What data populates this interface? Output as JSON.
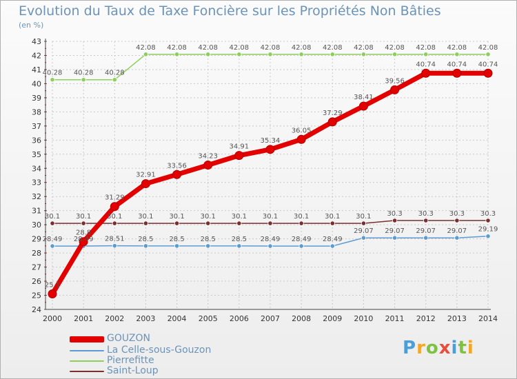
{
  "title": "Evolution du Taux de Taxe Foncière sur les Propriétés Non Bâties",
  "unit": "(en %)",
  "logo": {
    "text": "Proxiti",
    "letter_colors": [
      "#4a9fd8",
      "#f5a623",
      "#7fc241",
      "#e84e3b",
      "#4a9fd8",
      "#7fc241",
      "#f5a623"
    ]
  },
  "chart_data": {
    "type": "line",
    "x": [
      "2000",
      "2001",
      "2002",
      "2003",
      "2004",
      "2005",
      "2006",
      "2007",
      "2008",
      "2009",
      "2010",
      "2011",
      "2012",
      "2013",
      "2014"
    ],
    "ylim": [
      24,
      43
    ],
    "yticks": [
      24,
      25,
      26,
      27,
      28,
      29,
      30,
      31,
      32,
      33,
      34,
      35,
      36,
      37,
      38,
      39,
      40,
      41,
      42,
      43
    ],
    "grid": true,
    "legend_position": "bottom-left",
    "series": [
      {
        "name": "GOUZON",
        "color": "#e30000",
        "values": [
          25.1,
          28.8,
          31.29,
          32.91,
          33.56,
          34.23,
          34.91,
          35.34,
          36.05,
          37.29,
          38.41,
          39.56,
          40.74,
          40.74,
          40.74
        ],
        "labels": [
          "25.1",
          "28.8",
          "31.29",
          "32.91",
          "33.56",
          "34.23",
          "34.91",
          "35.34",
          "36.05",
          "37.29",
          "38.41",
          "39.56",
          "40.74",
          "40.74",
          "40.74"
        ]
      },
      {
        "name": "La Celle-sous-Gouzon",
        "color": "#5b9bd1",
        "values": [
          28.49,
          28.49,
          28.51,
          28.5,
          28.5,
          28.5,
          28.5,
          28.49,
          28.49,
          28.49,
          29.07,
          29.07,
          29.07,
          29.07,
          29.19
        ],
        "labels": [
          "28.49",
          "28.49",
          "28.51",
          "28.5",
          "28.5",
          "28.5",
          "28.5",
          "28.49",
          "28.49",
          "28.49",
          "29.07",
          "29.07",
          "29.07",
          "29.07",
          "29.19"
        ]
      },
      {
        "name": "Pierrefitte",
        "color": "#8ccf5a",
        "values": [
          40.28,
          40.28,
          40.28,
          42.08,
          42.08,
          42.08,
          42.08,
          42.08,
          42.08,
          42.08,
          42.08,
          42.08,
          42.08,
          42.08,
          42.08
        ],
        "labels": [
          "40.28",
          "40.28",
          "40.28",
          "42.08",
          "42.08",
          "42.08",
          "42.08",
          "42.08",
          "42.08",
          "42.08",
          "42.08",
          "42.08",
          "42.08",
          "42.08",
          "42.08"
        ]
      },
      {
        "name": "Saint-Loup",
        "color": "#7a2e2e",
        "values": [
          30.1,
          30.1,
          30.1,
          30.1,
          30.1,
          30.1,
          30.1,
          30.1,
          30.1,
          30.1,
          30.1,
          30.3,
          30.3,
          30.3,
          30.3
        ],
        "labels": [
          "30.1",
          "30.1",
          "30.1",
          "30.1",
          "30.1",
          "30.1",
          "30.1",
          "30.1",
          "30.1",
          "30.1",
          "30.1",
          "30.3",
          "30.3",
          "30.3",
          "30.3"
        ]
      }
    ]
  }
}
